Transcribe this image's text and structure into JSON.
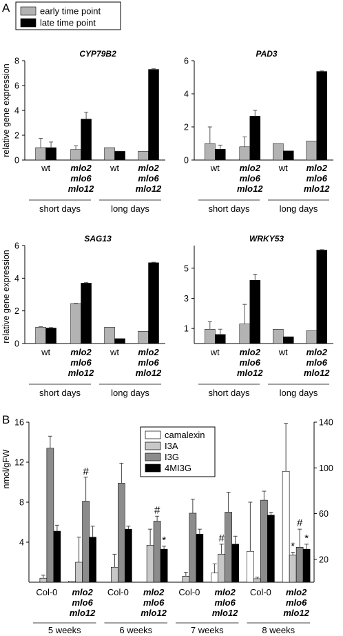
{
  "figure": {
    "panel_a_letter": "A",
    "panel_b_letter": "B",
    "panel_a_legend": [
      {
        "label": "early time point",
        "color": "#b3b3b3"
      },
      {
        "label": "late time point",
        "color": "#000000"
      }
    ],
    "panel_a_ylabel": "relative gene expression",
    "panel_a_categories": [
      "wt",
      "mlo2\nmlo6\nmlo12",
      "wt",
      "mlo2\nmlo6\nmlo12"
    ],
    "panel_a_groups": [
      "short days",
      "long days"
    ],
    "panel_b_ylabel": "nmol/gFW",
    "panel_b_categories": [
      "Col-0",
      "mlo2\nmlo6\nmlo12",
      "Col-0",
      "mlo2\nmlo6\nmlo12",
      "Col-0",
      "mlo2\nmlo6\nmlo12",
      "Col-0",
      "mlo2\nmlo6\nmlo12"
    ],
    "panel_b_groups": [
      "5 weeks",
      "6 weeks",
      "7 weeks",
      "8 weeks"
    ]
  },
  "chart_data": [
    {
      "type": "bar",
      "title": "CYP79B2",
      "ylim": [
        0,
        8
      ],
      "yticks": [
        "0",
        "2",
        "4",
        "6",
        "8"
      ],
      "series": [
        {
          "name": "early time point",
          "color": "#b3b3b3",
          "values": [
            1.0,
            0.85,
            1.0,
            0.7
          ],
          "errors": [
            0.75,
            0.3,
            0,
            0
          ]
        },
        {
          "name": "late time point",
          "color": "#000000",
          "values": [
            1.0,
            3.3,
            0.7,
            7.3
          ],
          "errors": [
            0.45,
            0.55,
            0,
            0.05
          ]
        }
      ]
    },
    {
      "type": "bar",
      "title": "PAD3",
      "ylim": [
        0,
        6
      ],
      "yticks": [
        "0",
        "2",
        "4",
        "6"
      ],
      "series": [
        {
          "name": "early time point",
          "color": "#b3b3b3",
          "values": [
            1.0,
            0.8,
            1.0,
            1.15
          ],
          "errors": [
            1.0,
            0.6,
            0,
            0
          ]
        },
        {
          "name": "late time point",
          "color": "#000000",
          "values": [
            0.65,
            2.65,
            0.55,
            5.35
          ],
          "errors": [
            0.25,
            0.35,
            0,
            0.03
          ]
        }
      ]
    },
    {
      "type": "bar",
      "title": "SAG13",
      "ylim": [
        0,
        6
      ],
      "yticks": [
        "0",
        "2",
        "4",
        "6"
      ],
      "series": [
        {
          "name": "early time point",
          "color": "#b3b3b3",
          "values": [
            1.0,
            2.45,
            1.0,
            0.75
          ],
          "errors": [
            0.03,
            0.02,
            0,
            0
          ]
        },
        {
          "name": "late time point",
          "color": "#000000",
          "values": [
            0.95,
            3.7,
            0.3,
            4.95
          ],
          "errors": [
            0.03,
            0.03,
            0,
            0.03
          ]
        }
      ]
    },
    {
      "type": "bar",
      "title": "WRKY53",
      "ylim": [
        0,
        6.5
      ],
      "yticks": [
        "1",
        "3",
        "5"
      ],
      "series": [
        {
          "name": "early time point",
          "color": "#b3b3b3",
          "values": [
            0.95,
            1.3,
            0.95,
            0.85
          ],
          "errors": [
            0.5,
            1.3,
            0,
            0
          ]
        },
        {
          "name": "late time point",
          "color": "#000000",
          "values": [
            0.6,
            4.2,
            0.45,
            6.2
          ],
          "errors": [
            0.35,
            0.4,
            0,
            0.03
          ]
        }
      ]
    },
    {
      "type": "bar",
      "ylim": [
        0,
        16
      ],
      "yticks": [
        "4",
        "8",
        "12",
        "16"
      ],
      "ylim_right": [
        0,
        140
      ],
      "yticks_right": [
        "20",
        "60",
        "100",
        "140"
      ],
      "series": [
        {
          "name": "camalexin",
          "color": "#ffffff",
          "axis": "right",
          "values": [
            0,
            1,
            0,
            0,
            0,
            8,
            27,
            97
          ],
          "errors": [
            0,
            0,
            0,
            0,
            0,
            8,
            43,
            42
          ],
          "marks": [
            "",
            "",
            "",
            "",
            "",
            "",
            "",
            ""
          ]
        },
        {
          "name": "I3A",
          "color": "#c8c8c8",
          "axis": "left",
          "values": [
            0.4,
            2.0,
            1.5,
            3.7,
            0.6,
            2.8,
            0.35,
            2.7
          ],
          "errors": [
            0.3,
            2.5,
            1.3,
            1.6,
            0.4,
            1.0,
            0.15,
            0.3
          ],
          "marks": [
            "",
            "",
            "",
            "",
            "",
            "#",
            "",
            "*"
          ]
        },
        {
          "name": "I3G",
          "color": "#8c8c8c",
          "axis": "left",
          "values": [
            13.4,
            8.1,
            9.9,
            6.1,
            6.9,
            7.0,
            8.2,
            3.5
          ],
          "errors": [
            1.2,
            2.4,
            2.0,
            0.5,
            1.4,
            2.0,
            0.9,
            1.8
          ],
          "marks": [
            "",
            "#",
            "",
            "#",
            "",
            "",
            "",
            "#"
          ]
        },
        {
          "name": "4MI3G",
          "color": "#000000",
          "axis": "left",
          "values": [
            5.1,
            4.5,
            5.3,
            3.3,
            4.8,
            3.8,
            6.7,
            3.3
          ],
          "errors": [
            0.6,
            1.1,
            0.3,
            0.3,
            0.5,
            0.8,
            0.3,
            0.5
          ],
          "marks": [
            "",
            "",
            "",
            "*",
            "",
            "",
            "",
            "*"
          ]
        }
      ]
    }
  ]
}
